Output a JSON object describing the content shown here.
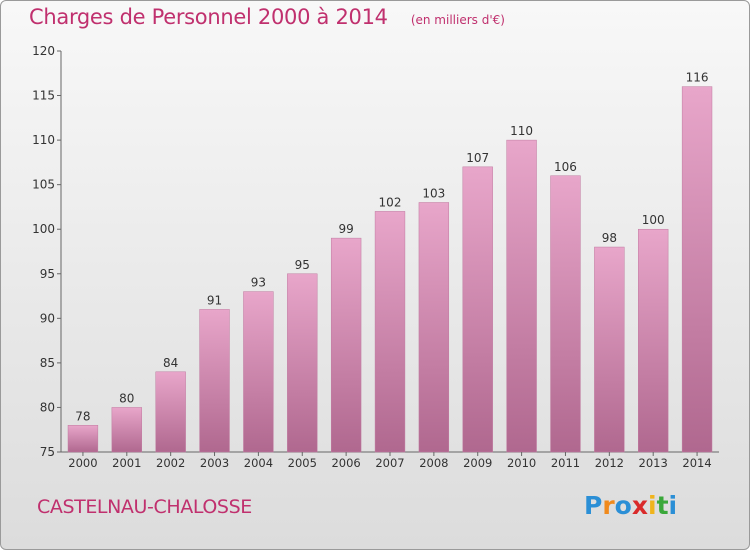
{
  "title": "Charges de Personnel 2000 à 2014",
  "unit": "(en milliers d'€)",
  "commune": "CASTELNAU-CHALOSSE",
  "brand": {
    "letters": [
      "P",
      "r",
      "o",
      "x",
      "i",
      "t",
      "i"
    ],
    "colors": [
      "#2b8fd6",
      "#f08a1c",
      "#2b8fd6",
      "#d92a2a",
      "#f0b41c",
      "#3aa83a",
      "#2b8fd6"
    ]
  },
  "colors": {
    "bar_light": "#e8a6ca",
    "bar_dark": "#b0688f",
    "text_accent": "#c0306e"
  },
  "chart_data": {
    "type": "bar",
    "categories": [
      "2000",
      "2001",
      "2002",
      "2003",
      "2004",
      "2005",
      "2006",
      "2007",
      "2008",
      "2009",
      "2010",
      "2011",
      "2012",
      "2013",
      "2014"
    ],
    "values": [
      78,
      80,
      84,
      91,
      93,
      95,
      99,
      102,
      103,
      107,
      110,
      106,
      98,
      100,
      116
    ],
    "ylim": [
      75,
      120
    ],
    "yticks": [
      75,
      80,
      85,
      90,
      95,
      100,
      105,
      110,
      115,
      120
    ],
    "grid": false,
    "data_labels": true
  }
}
